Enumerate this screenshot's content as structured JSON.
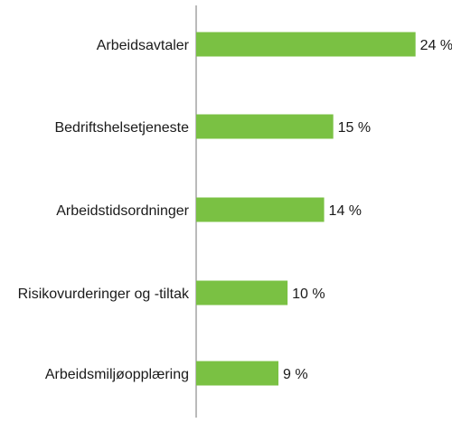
{
  "chart_data": {
    "type": "bar",
    "orientation": "horizontal",
    "categories": [
      "Arbeidsavtaler",
      "Bedriftshelsetjeneste",
      "Arbeidstidsordninger",
      "Risikovurderinger og -tiltak",
      "Arbeidsmiljøopplæring"
    ],
    "values": [
      24,
      15,
      14,
      10,
      9
    ],
    "value_labels": [
      "24 %",
      "15 %",
      "14 %",
      "10 %",
      "9 %"
    ],
    "unit": "%",
    "xlim": [
      0,
      27
    ],
    "grid": false,
    "legend": "none",
    "bar_color": "#7ac143",
    "axis_color": "#8c8c8c"
  }
}
